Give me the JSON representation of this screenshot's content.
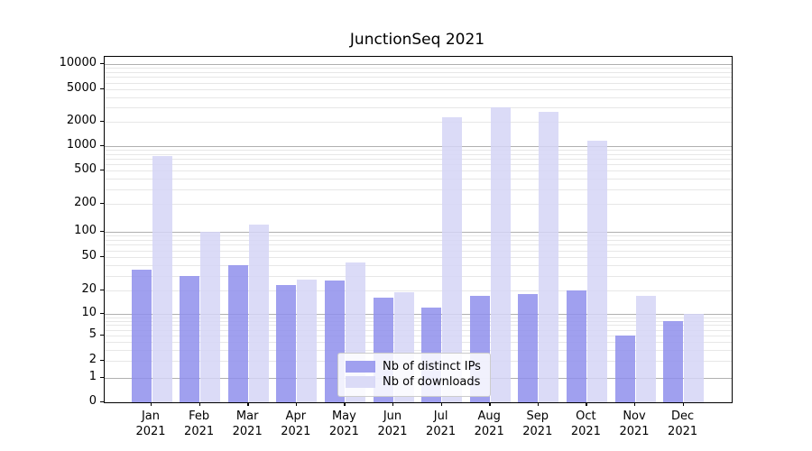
{
  "title": "JunctionSeq 2021",
  "chart_data": {
    "type": "bar",
    "title": "JunctionSeq 2021",
    "categories": [
      "Jan 2021",
      "Feb 2021",
      "Mar 2021",
      "Apr 2021",
      "May 2021",
      "Jun 2021",
      "Jul 2021",
      "Aug 2021",
      "Sep 2021",
      "Oct 2021",
      "Nov 2021",
      "Dec 2021"
    ],
    "series": [
      {
        "name": "Nb of distinct IPs",
        "color": "#8f8fec",
        "values": [
          35,
          30,
          40,
          23,
          26,
          16,
          12,
          17,
          18,
          20,
          5,
          8
        ]
      },
      {
        "name": "Nb of downloads",
        "color": "#d5d5f6",
        "values": [
          750,
          100,
          120,
          27,
          43,
          19,
          2300,
          3000,
          2650,
          1160,
          17,
          10
        ]
      }
    ],
    "yscale": "symlog",
    "yticks": [
      0,
      1,
      2,
      5,
      10,
      20,
      50,
      100,
      200,
      500,
      1000,
      2000,
      5000,
      10000
    ],
    "ylim": [
      0,
      12000
    ],
    "xlabel": "",
    "ylabel": "",
    "grid": "horizontal log grid, major + minor",
    "legend_position": "lower center inside plot"
  },
  "colors": {
    "bar_distinct_ips": "#8f8fec",
    "bar_downloads": "#d5d5f6",
    "grid_major": "#b0b0b0",
    "grid_minor": "#e7e7e7",
    "spine": "#000000",
    "background": "#ffffff"
  }
}
